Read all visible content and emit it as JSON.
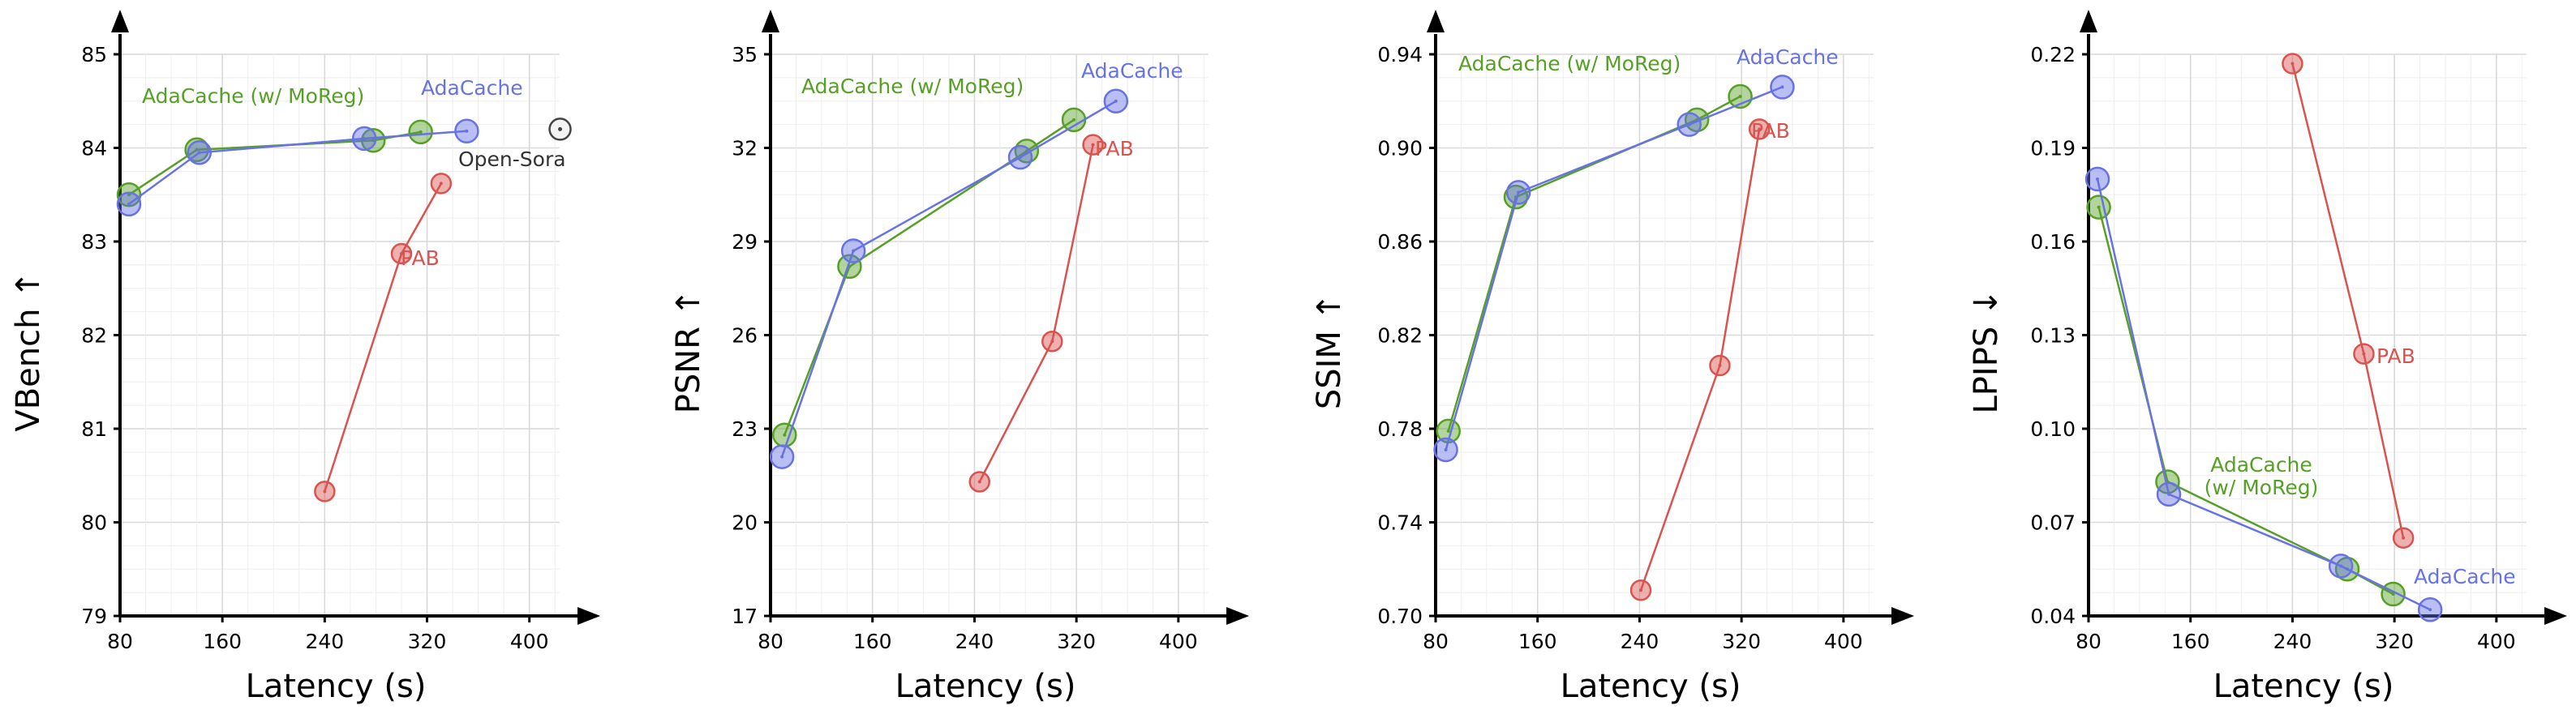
{
  "colors": {
    "adacache": "#6772e5",
    "moreg": "#56a026",
    "pab": "#d9534f",
    "opensora": "#444444"
  },
  "chart_data": [
    {
      "type": "scatter",
      "ylabel": "VBench",
      "ylabel_arrow": "↑",
      "xlabel": "Latency (s)",
      "xlim": [
        80,
        430
      ],
      "ylim": [
        79,
        85
      ],
      "x_ticks": [
        "80",
        "160",
        "240",
        "320",
        "400"
      ],
      "y_ticks": [
        "79",
        "80",
        "81",
        "82",
        "83",
        "84",
        "85"
      ],
      "series": [
        {
          "key": "pab",
          "name": "PAB",
          "points": [
            [
              240,
              80.33
            ],
            [
              300,
              82.87
            ],
            [
              331,
              83.62
            ]
          ]
        },
        {
          "key": "moreg",
          "name": "AdaCache (w/ MoReg)",
          "points": [
            [
              87,
              83.5
            ],
            [
              140,
              83.98
            ],
            [
              278,
              84.08
            ],
            [
              315,
              84.17
            ]
          ]
        },
        {
          "key": "adacache",
          "name": "AdaCache",
          "points": [
            [
              87,
              83.4
            ],
            [
              142,
              83.95
            ],
            [
              271,
              84.1
            ],
            [
              351,
              84.18
            ]
          ]
        },
        {
          "key": "opensora",
          "name": "Open-Sora",
          "points": [
            [
              424,
              84.2
            ]
          ]
        }
      ]
    },
    {
      "type": "scatter",
      "ylabel": "PSNR",
      "ylabel_arrow": "↑",
      "xlabel": "Latency (s)",
      "xlim": [
        80,
        430
      ],
      "ylim": [
        17,
        35
      ],
      "x_ticks": [
        "80",
        "160",
        "240",
        "320",
        "400"
      ],
      "y_ticks": [
        "17",
        "20",
        "23",
        "26",
        "29",
        "32",
        "35"
      ],
      "series": [
        {
          "key": "pab",
          "name": "PAB",
          "points": [
            [
              244,
              21.3
            ],
            [
              301,
              25.8
            ],
            [
              333,
              32.1
            ]
          ]
        },
        {
          "key": "moreg",
          "name": "AdaCache (w/ MoReg)",
          "points": [
            [
              91,
              22.8
            ],
            [
              142,
              28.2
            ],
            [
              281,
              31.9
            ],
            [
              318,
              32.9
            ]
          ]
        },
        {
          "key": "adacache",
          "name": "AdaCache",
          "points": [
            [
              89,
              22.1
            ],
            [
              145,
              28.7
            ],
            [
              276,
              31.7
            ],
            [
              351,
              33.5
            ]
          ]
        }
      ]
    },
    {
      "type": "scatter",
      "ylabel": "SSIM",
      "ylabel_arrow": "↑",
      "xlabel": "Latency (s)",
      "xlim": [
        80,
        430
      ],
      "ylim": [
        0.7,
        0.94
      ],
      "x_ticks": [
        "80",
        "160",
        "240",
        "320",
        "400"
      ],
      "y_ticks": [
        "0.70",
        "0.74",
        "0.78",
        "0.82",
        "0.86",
        "0.90",
        "0.94"
      ],
      "series": [
        {
          "key": "pab",
          "name": "PAB",
          "points": [
            [
              241,
              0.711
            ],
            [
              303,
              0.807
            ],
            [
              334,
              0.908
            ]
          ]
        },
        {
          "key": "moreg",
          "name": "AdaCache (w/ MoReg)",
          "points": [
            [
              90,
              0.779
            ],
            [
              143,
              0.879
            ],
            [
              285,
              0.912
            ],
            [
              319,
              0.922
            ]
          ]
        },
        {
          "key": "adacache",
          "name": "AdaCache",
          "points": [
            [
              88,
              0.771
            ],
            [
              145,
              0.881
            ],
            [
              279,
              0.91
            ],
            [
              352,
              0.926
            ]
          ]
        }
      ]
    },
    {
      "type": "scatter",
      "ylabel": "LPIPS",
      "ylabel_arrow": "↓",
      "xlabel": "Latency (s)",
      "xlim": [
        80,
        430
      ],
      "ylim": [
        0.04,
        0.22
      ],
      "x_ticks": [
        "80",
        "160",
        "240",
        "320",
        "400"
      ],
      "y_ticks": [
        "0.04",
        "0.07",
        "0.10",
        "0.13",
        "0.16",
        "0.19",
        "0.22"
      ],
      "series": [
        {
          "key": "pab",
          "name": "PAB",
          "points": [
            [
              240,
              0.217
            ],
            [
              296,
              0.124
            ],
            [
              327,
              0.065
            ]
          ]
        },
        {
          "key": "moreg",
          "name": "AdaCache (w/ MoReg)",
          "points": [
            [
              88,
              0.171
            ],
            [
              142,
              0.083
            ],
            [
              283,
              0.055
            ],
            [
              319,
              0.047
            ]
          ]
        },
        {
          "key": "adacache",
          "name": "AdaCache",
          "points": [
            [
              87,
              0.18
            ],
            [
              143,
              0.079
            ],
            [
              278,
              0.056
            ],
            [
              348,
              0.042
            ]
          ]
        }
      ]
    }
  ]
}
